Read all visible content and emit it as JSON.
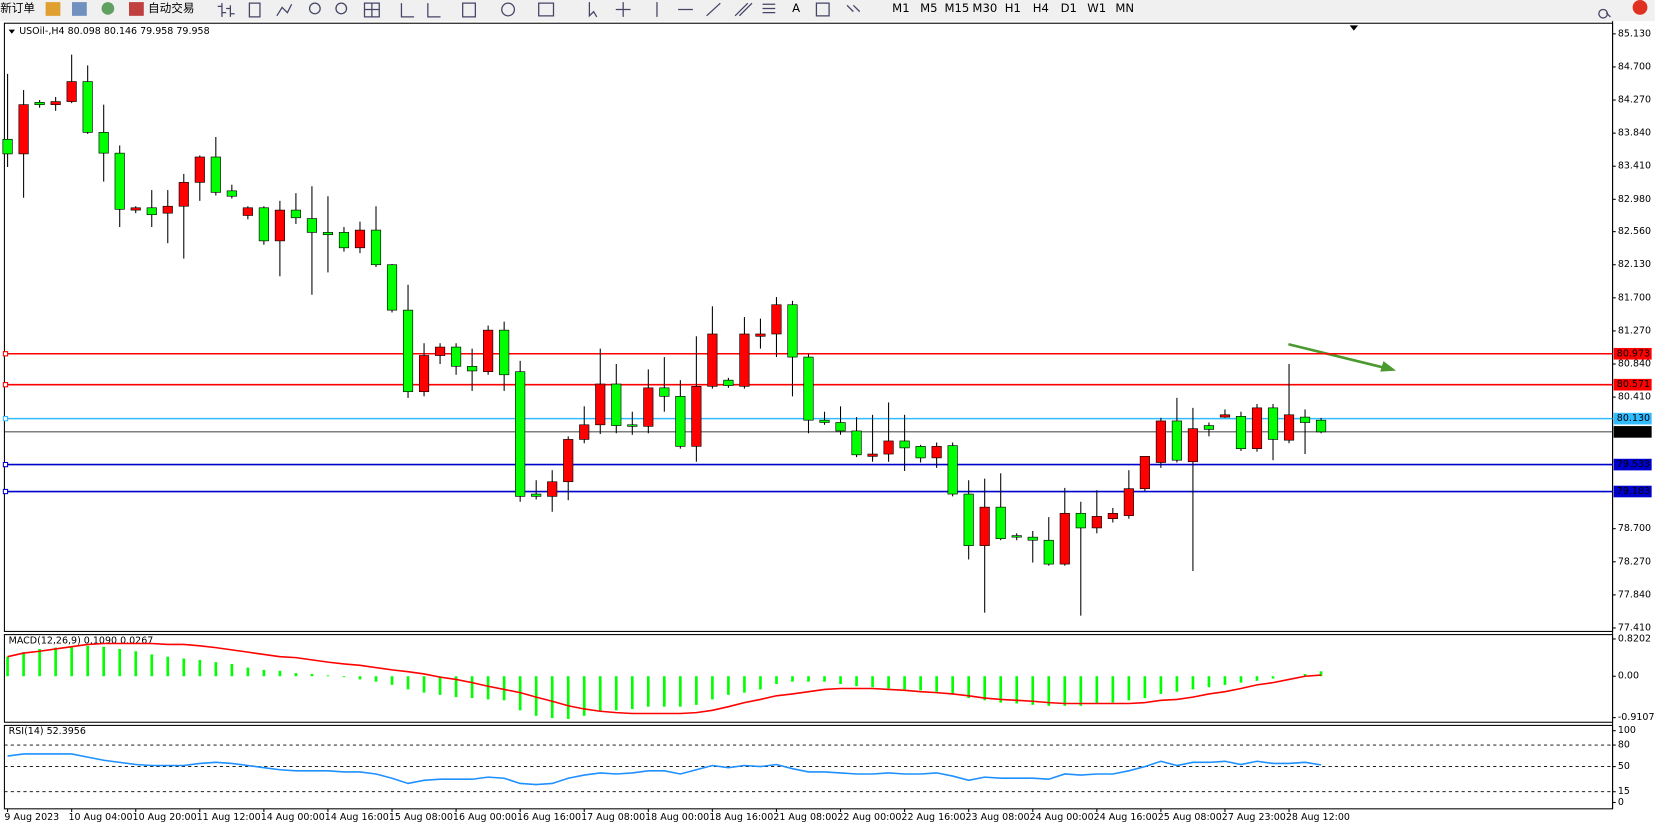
{
  "toolbar": {
    "new_order": "新订单",
    "auto_trading": "自动交易",
    "timeframes": [
      "M1",
      "M5",
      "M15",
      "M30",
      "H1",
      "H4",
      "D1",
      "W1",
      "MN"
    ]
  },
  "chart_data": [
    {
      "type": "candlestick",
      "title": "USOil-,H4 80.098 80.146 79.958 79.958",
      "categories": [
        "9 Aug 2023",
        null,
        null,
        null,
        "10 Aug 04:00",
        null,
        null,
        null,
        "10 Aug 20:00",
        null,
        null,
        null,
        "11 Aug 12:00",
        null,
        null,
        null,
        "14 Aug 00:00",
        null,
        null,
        null,
        "14 Aug 16:00",
        null,
        null,
        null,
        "15 Aug 08:00",
        null,
        null,
        null,
        "16 Aug 00:00",
        null,
        null,
        null,
        "16 Aug 16:00",
        null,
        null,
        null,
        "17 Aug 08:00",
        null,
        null,
        null,
        "18 Aug 00:00",
        null,
        null,
        null,
        "18 Aug 16:00",
        null,
        null,
        null,
        "21 Aug 08:00",
        null,
        null,
        null,
        "22 Aug 00:00",
        null,
        null,
        null,
        "22 Aug 16:00",
        null,
        null,
        null,
        "23 Aug 08:00",
        null,
        null,
        null,
        "24 Aug 00:00",
        null,
        null,
        null,
        "24 Aug 16:00",
        null,
        null,
        null,
        "25 Aug 08:00",
        null,
        null,
        null,
        "27 Aug 23:00",
        null,
        null,
        null,
        "28 Aug 12:00",
        null,
        null
      ],
      "open": [
        83.76,
        83.57,
        84.24,
        84.21,
        84.25,
        84.51,
        83.85,
        83.58,
        82.84,
        82.87,
        82.8,
        82.89,
        83.2,
        83.53,
        83.09,
        82.77,
        82.87,
        82.44,
        82.84,
        82.73,
        82.55,
        82.55,
        82.35,
        82.58,
        82.13,
        81.54,
        80.48,
        80.95,
        81.06,
        80.81,
        80.74,
        81.28,
        80.74,
        79.15,
        79.12,
        79.31,
        79.86,
        80.05,
        80.58,
        80.05,
        80.03,
        80.53,
        80.42,
        79.77,
        80.55,
        80.63,
        80.55,
        81.2,
        81.23,
        81.61,
        80.93,
        80.11,
        80.08,
        79.97,
        79.64,
        79.67,
        79.84,
        79.77,
        79.62,
        79.78,
        79.15,
        78.48,
        78.98,
        78.61,
        78.59,
        78.55,
        78.24,
        78.9,
        78.71,
        78.83,
        78.87,
        79.22,
        79.56,
        80.1,
        79.57,
        80.04,
        80.15,
        80.16,
        79.74,
        80.27,
        79.85,
        80.15,
        80.11
      ],
      "high": [
        84.61,
        84.4,
        84.27,
        84.31,
        84.86,
        84.72,
        84.21,
        83.68,
        82.89,
        83.1,
        83.1,
        83.31,
        83.55,
        83.79,
        83.17,
        82.89,
        82.89,
        82.96,
        83.06,
        83.15,
        83.02,
        82.62,
        82.69,
        82.89,
        82.14,
        81.87,
        81.11,
        81.11,
        81.11,
        81.04,
        81.34,
        81.39,
        80.88,
        79.33,
        79.46,
        79.9,
        80.29,
        81.04,
        80.84,
        80.22,
        80.77,
        80.93,
        80.63,
        81.2,
        81.59,
        80.66,
        81.45,
        81.43,
        81.71,
        81.66,
        80.97,
        80.22,
        80.29,
        80.15,
        80.18,
        80.34,
        80.18,
        79.79,
        79.82,
        79.82,
        79.33,
        79.35,
        79.42,
        78.64,
        78.67,
        78.85,
        79.23,
        79.05,
        79.2,
        78.97,
        79.46,
        79.64,
        80.14,
        80.4,
        80.27,
        80.08,
        80.25,
        80.22,
        80.32,
        80.32,
        80.84,
        80.25,
        80.14
      ],
      "low": [
        83.4,
        83.0,
        84.17,
        84.13,
        84.23,
        83.83,
        83.21,
        82.62,
        82.8,
        82.62,
        82.41,
        82.21,
        82.96,
        83.03,
        82.99,
        82.72,
        82.39,
        81.98,
        82.66,
        81.74,
        82.03,
        82.3,
        82.28,
        82.1,
        81.51,
        80.4,
        80.42,
        80.84,
        80.7,
        80.49,
        80.7,
        80.49,
        79.05,
        79.08,
        78.92,
        79.07,
        79.81,
        79.93,
        79.94,
        79.92,
        79.94,
        80.22,
        79.74,
        79.57,
        80.52,
        80.53,
        80.52,
        81.04,
        80.93,
        80.42,
        79.94,
        80.05,
        79.92,
        79.63,
        79.57,
        79.57,
        79.45,
        79.56,
        79.49,
        79.12,
        78.3,
        77.61,
        78.55,
        78.55,
        78.26,
        78.22,
        78.22,
        77.57,
        78.64,
        78.78,
        78.83,
        79.19,
        79.49,
        79.56,
        78.15,
        79.9,
        80.14,
        79.71,
        79.7,
        79.59,
        79.81,
        79.67,
        79.94
      ],
      "close": [
        83.57,
        84.21,
        84.21,
        84.25,
        84.51,
        83.85,
        83.58,
        82.85,
        82.87,
        82.78,
        82.89,
        83.2,
        83.53,
        83.07,
        83.02,
        82.87,
        82.44,
        82.84,
        82.74,
        82.55,
        82.52,
        82.35,
        82.58,
        82.13,
        81.54,
        80.48,
        80.95,
        81.06,
        80.81,
        80.75,
        81.28,
        80.7,
        79.12,
        79.12,
        79.31,
        79.86,
        80.05,
        80.58,
        80.04,
        80.03,
        80.53,
        80.42,
        79.77,
        80.55,
        81.23,
        80.56,
        81.23,
        81.23,
        81.61,
        80.93,
        80.11,
        80.08,
        79.97,
        79.66,
        79.67,
        79.84,
        79.75,
        79.62,
        79.77,
        79.15,
        78.48,
        78.98,
        78.57,
        78.59,
        78.55,
        78.24,
        78.9,
        78.71,
        78.86,
        78.9,
        79.22,
        79.64,
        80.1,
        79.59,
        80.0,
        79.99,
        80.18,
        79.74,
        80.27,
        79.86,
        80.18,
        80.08,
        79.958
      ],
      "up_color": "#ff0000",
      "down_color": "#00ff00",
      "ylim": [
        77.365,
        85.268
      ],
      "yticks": [
        {
          "value": 85.13,
          "label": "85.130"
        },
        {
          "value": 84.7,
          "label": "84.700"
        },
        {
          "value": 84.27,
          "label": "84.270"
        },
        {
          "value": 83.84,
          "label": "83.840"
        },
        {
          "value": 83.41,
          "label": "83.410"
        },
        {
          "value": 82.98,
          "label": "82.980"
        },
        {
          "value": 82.56,
          "label": "82.560"
        },
        {
          "value": 82.13,
          "label": "82.130"
        },
        {
          "value": 81.7,
          "label": "81.700"
        },
        {
          "value": 81.27,
          "label": "81.270"
        },
        {
          "value": 80.84,
          "label": "80.840"
        },
        {
          "value": 80.41,
          "label": "80.410"
        },
        {
          "value": 78.7,
          "label": "78.700"
        },
        {
          "value": 78.27,
          "label": "78.270"
        },
        {
          "value": 77.84,
          "label": "77.840"
        },
        {
          "value": 77.41,
          "label": "77.410"
        }
      ],
      "levels": [
        {
          "value": 80.973,
          "color": "#ff0000"
        },
        {
          "value": 80.571,
          "color": "#ff0000"
        },
        {
          "value": {
            "value": 80.13,
            "label": "80.130"
          },
          "color": "#33bbff"
        },
        {
          "value": 79.533,
          "color": "#0000cc"
        },
        {
          "value": 79.183,
          "color": "#0000cc"
        }
      ],
      "current_price": 79.958
    },
    {
      "type": "macd",
      "title": "MACD(12,26,9) 0.1090 0.0267",
      "histogram": {
        "color": "#00ff00",
        "values": [
          0.43,
          0.53,
          0.6,
          0.63,
          0.65,
          0.67,
          0.65,
          0.6,
          0.55,
          0.48,
          0.43,
          0.39,
          0.36,
          0.31,
          0.27,
          0.19,
          0.14,
          0.12,
          0.07,
          0.05,
          0.02,
          -0.02,
          -0.07,
          -0.12,
          -0.19,
          -0.29,
          -0.36,
          -0.41,
          -0.46,
          -0.48,
          -0.51,
          -0.53,
          -0.75,
          -0.87,
          -0.92,
          -0.94,
          -0.87,
          -0.77,
          -0.75,
          -0.72,
          -0.67,
          -0.67,
          -0.67,
          -0.63,
          -0.51,
          -0.41,
          -0.36,
          -0.29,
          -0.17,
          -0.12,
          -0.12,
          -0.12,
          -0.17,
          -0.22,
          -0.24,
          -0.27,
          -0.29,
          -0.31,
          -0.34,
          -0.39,
          -0.48,
          -0.53,
          -0.58,
          -0.6,
          -0.63,
          -0.65,
          -0.65,
          -0.65,
          -0.6,
          -0.58,
          -0.53,
          -0.48,
          -0.39,
          -0.34,
          -0.29,
          -0.24,
          -0.19,
          -0.14,
          -0.1,
          -0.05,
          0.0,
          0.05,
          0.109
        ]
      },
      "signal": {
        "color": "#ff0000",
        "values": [
          0.43,
          0.51,
          0.55,
          0.6,
          0.65,
          0.7,
          0.72,
          0.72,
          0.72,
          0.72,
          0.7,
          0.7,
          0.67,
          0.63,
          0.58,
          0.53,
          0.48,
          0.43,
          0.41,
          0.36,
          0.31,
          0.27,
          0.24,
          0.19,
          0.14,
          0.1,
          0.05,
          -0.02,
          -0.07,
          -0.14,
          -0.22,
          -0.29,
          -0.36,
          -0.46,
          -0.55,
          -0.65,
          -0.72,
          -0.77,
          -0.8,
          -0.82,
          -0.82,
          -0.82,
          -0.82,
          -0.8,
          -0.75,
          -0.67,
          -0.58,
          -0.51,
          -0.43,
          -0.39,
          -0.34,
          -0.29,
          -0.27,
          -0.27,
          -0.27,
          -0.29,
          -0.31,
          -0.34,
          -0.36,
          -0.39,
          -0.43,
          -0.48,
          -0.51,
          -0.53,
          -0.55,
          -0.58,
          -0.6,
          -0.6,
          -0.6,
          -0.6,
          -0.6,
          -0.58,
          -0.53,
          -0.51,
          -0.46,
          -0.39,
          -0.34,
          -0.27,
          -0.19,
          -0.14,
          -0.07,
          0.0,
          0.0267
        ]
      },
      "ylim": [
        -1.012,
        0.916
      ],
      "yticks": [
        0.8202,
        {
          "value": 0,
          "label": "0.00"
        },
        -0.9107
      ]
    },
    {
      "type": "line",
      "title": "RSI(14) 52.3956",
      "color": "#1e90ff",
      "values": [
        64.7,
        67.6,
        67.6,
        67.6,
        67.6,
        63.2,
        58.8,
        55.9,
        52.9,
        51.5,
        51.5,
        51.5,
        54.4,
        55.9,
        54.4,
        51.5,
        48.5,
        45.6,
        44.1,
        44.1,
        44.1,
        42.6,
        42.6,
        39.7,
        33.8,
        26.5,
        30.9,
        32.4,
        32.4,
        32.4,
        35.3,
        33.8,
        26.5,
        25.0,
        26.5,
        33.8,
        38.2,
        41.2,
        39.7,
        41.2,
        44.1,
        44.1,
        39.7,
        45.6,
        51.5,
        48.5,
        51.5,
        50.0,
        52.9,
        47.1,
        42.6,
        42.6,
        41.2,
        39.7,
        39.7,
        41.2,
        39.7,
        39.7,
        41.2,
        36.8,
        30.9,
        35.3,
        33.8,
        33.8,
        33.8,
        32.4,
        39.7,
        38.2,
        39.7,
        39.7,
        44.1,
        50.0,
        57.4,
        51.5,
        55.9,
        55.9,
        57.4,
        52.9,
        57.4,
        54.4,
        54.4,
        55.9,
        52.3956
      ],
      "ylim": [
        0,
        100
      ],
      "yticks": [
        100,
        80,
        50,
        15,
        0
      ],
      "levels": [
        80,
        50,
        15
      ]
    }
  ]
}
